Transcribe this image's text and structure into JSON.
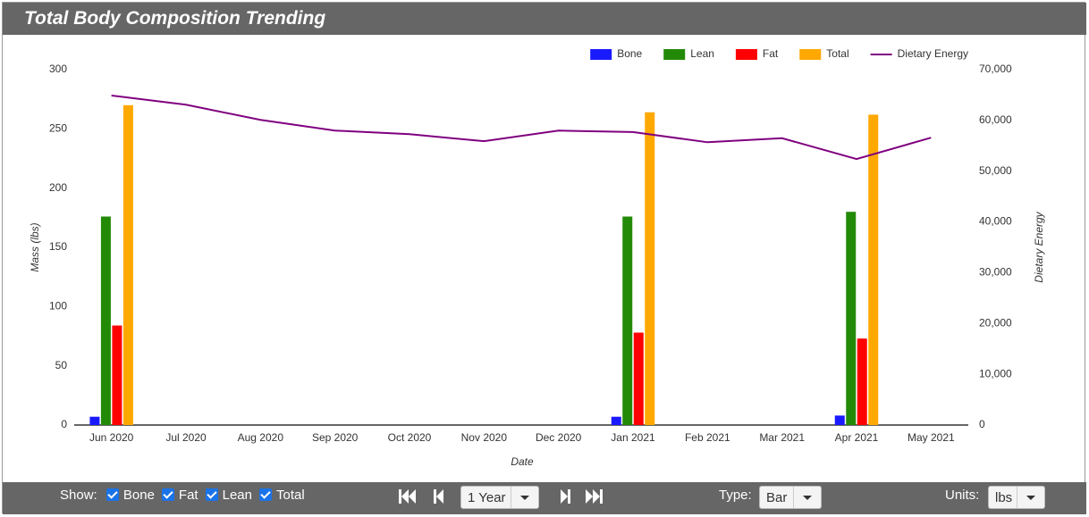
{
  "chart_data": {
    "type": "bar",
    "title": "Total Body Composition Trending",
    "x_label": "Date",
    "y_label": "Mass (lbs)",
    "y2_label": "Dietary Energy",
    "categories": [
      "Jun 2020",
      "Jul 2020",
      "Aug 2020",
      "Sep 2020",
      "Oct 2020",
      "Nov 2020",
      "Dec 2020",
      "Jan 2021",
      "Feb 2021",
      "Mar 2021",
      "Apr 2021",
      "May 2021"
    ],
    "series": [
      {
        "name": "Bone",
        "color": "#1a1aff",
        "values": [
          7,
          null,
          null,
          null,
          null,
          null,
          null,
          7,
          null,
          null,
          8,
          null
        ]
      },
      {
        "name": "Lean",
        "color": "#238a08",
        "values": [
          176,
          null,
          null,
          null,
          null,
          null,
          null,
          176,
          null,
          null,
          180,
          null
        ]
      },
      {
        "name": "Fat",
        "color": "#ff0000",
        "values": [
          84,
          null,
          null,
          null,
          null,
          null,
          null,
          78,
          null,
          null,
          73,
          null
        ]
      },
      {
        "name": "Total",
        "color": "#ffa800",
        "values": [
          270,
          null,
          null,
          null,
          null,
          null,
          null,
          264,
          null,
          null,
          262,
          null
        ]
      },
      {
        "name": "Dietary Energy",
        "color": "#800080",
        "type": "line",
        "axis": "y2",
        "values": [
          64900,
          63100,
          60100,
          58000,
          57300,
          55900,
          58000,
          57700,
          55700,
          56500,
          52400,
          56600
        ]
      }
    ],
    "ylim": [
      0,
      300
    ],
    "yticks": [
      0,
      50,
      100,
      150,
      200,
      250,
      300
    ],
    "y2lim": [
      0,
      70000
    ],
    "y2ticks": [
      0,
      {
        "value": 10000,
        "label": "10,000"
      },
      {
        "value": 20000,
        "label": "20,000"
      },
      {
        "value": 30000,
        "label": "30,000"
      },
      {
        "value": 40000,
        "label": "40,000"
      },
      {
        "value": 50000,
        "label": "50,000"
      },
      {
        "value": 60000,
        "label": "60,000"
      },
      {
        "value": 70000,
        "label": "70,000"
      }
    ],
    "grid": false,
    "legend": "top-right"
  },
  "controls": {
    "show_label": "Show:",
    "checkboxes": [
      {
        "label": "Bone",
        "checked": true
      },
      {
        "label": "Fat",
        "checked": true
      },
      {
        "label": "Lean",
        "checked": true
      },
      {
        "label": "Total",
        "checked": true
      }
    ],
    "period": "1 Year",
    "type_label": "Type:",
    "type_value": "Bar",
    "units_label": "Units:",
    "units_value": "lbs"
  }
}
